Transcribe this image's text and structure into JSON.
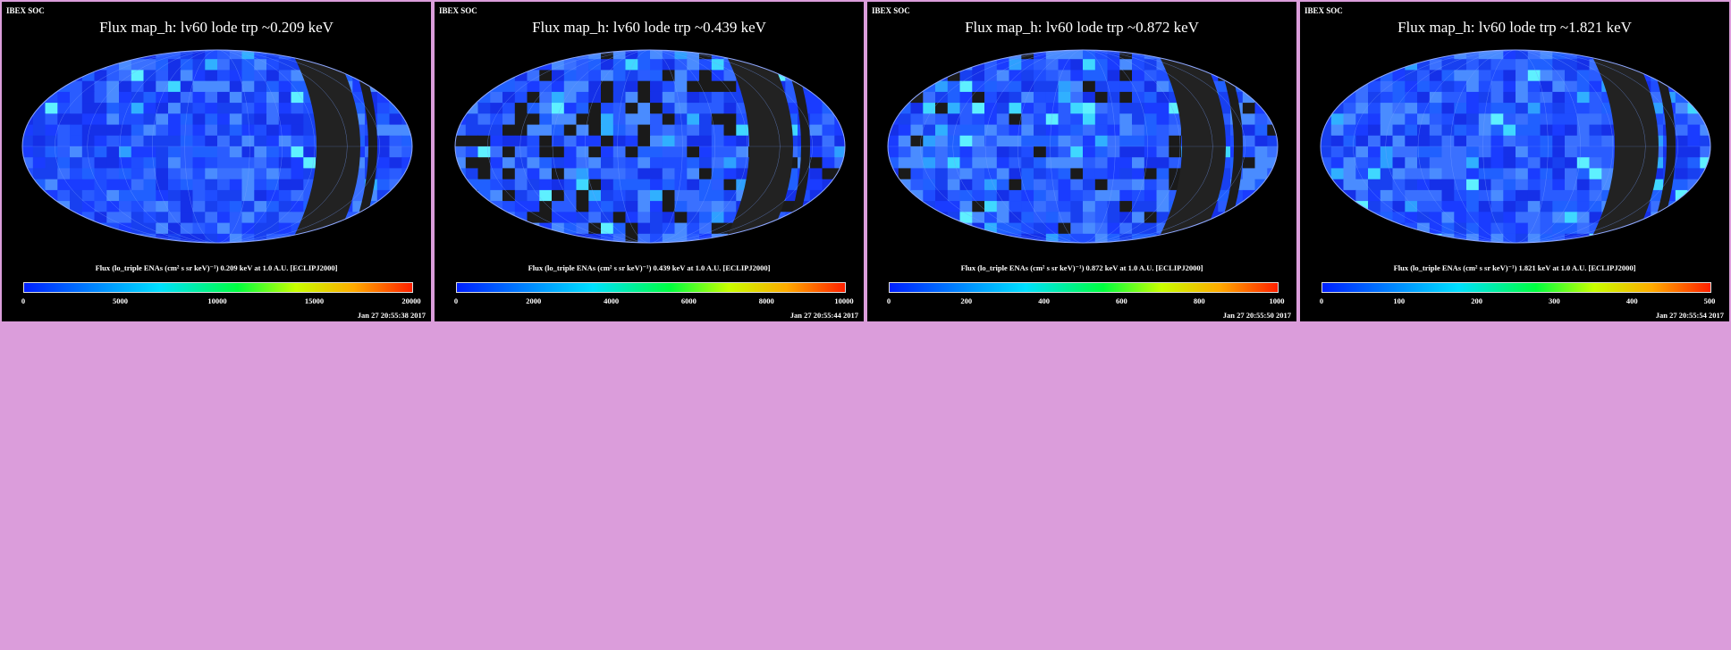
{
  "panels": [
    {
      "org": "IBEX SOC",
      "title": "Flux   map_h: lv60 lode trp ~0.209 keV",
      "colorbar_label": "Flux (lo_triple ENAs (cm² s sr keV)⁻¹)  0.209 keV at 1.0 A.U. [ECLIPJ2000]",
      "ticks": [
        "0",
        "5000",
        "10000",
        "15000",
        "20000"
      ],
      "timestamp": "Jan 27 20:55:38 2017"
    },
    {
      "org": "IBEX SOC",
      "title": "Flux   map_h: lv60 lode trp ~0.439 keV",
      "colorbar_label": "Flux (lo_triple ENAs (cm² s sr keV)⁻¹)  0.439 keV at 1.0 A.U. [ECLIPJ2000]",
      "ticks": [
        "0",
        "2000",
        "4000",
        "6000",
        "8000",
        "10000"
      ],
      "timestamp": "Jan 27 20:55:44 2017"
    },
    {
      "org": "IBEX SOC",
      "title": "Flux   map_h: lv60 lode trp ~0.872 keV",
      "colorbar_label": "Flux (lo_triple ENAs (cm² s sr keV)⁻¹)  0.872 keV at 1.0 A.U. [ECLIPJ2000]",
      "ticks": [
        "0",
        "200",
        "400",
        "600",
        "800",
        "1000"
      ],
      "timestamp": "Jan 27 20:55:50 2017"
    },
    {
      "org": "IBEX SOC",
      "title": "Flux   map_h: lv60 lode trp ~1.821 keV",
      "colorbar_label": "Flux (lo_triple ENAs (cm² s sr keV)⁻¹)  1.821 keV at 1.0 A.U. [ECLIPJ2000]",
      "ticks": [
        "0",
        "100",
        "200",
        "300",
        "400",
        "500"
      ],
      "timestamp": "Jan 27 20:55:54 2017"
    }
  ],
  "colors": {
    "page_background": "#db9ddb",
    "panel_background": "#000000",
    "map_base": "#1a3cff",
    "gap_band": "#222222"
  }
}
